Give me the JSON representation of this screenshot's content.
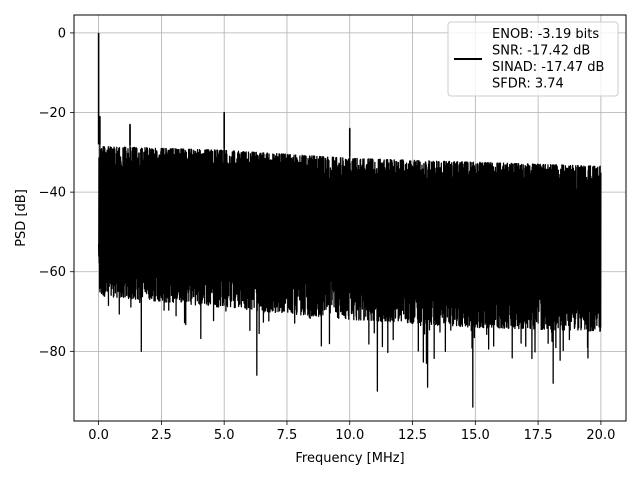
{
  "chart_data": {
    "type": "line",
    "xlabel": "Frequency [MHz]",
    "ylabel": "PSD [dB]",
    "xlim": [
      -0.98,
      21.0
    ],
    "ylim": [
      -97.5,
      4.5
    ],
    "xticks": [
      0.0,
      2.5,
      5.0,
      7.5,
      10.0,
      12.5,
      15.0,
      17.5,
      20.0
    ],
    "xtick_labels": [
      "0.0",
      "2.5",
      "5.0",
      "7.5",
      "10.0",
      "12.5",
      "15.0",
      "17.5",
      "20.0"
    ],
    "yticks": [
      0,
      -20,
      -40,
      -60,
      -80
    ],
    "ytick_labels": [
      "0",
      "−20",
      "−40",
      "−60",
      "−80"
    ],
    "grid": true,
    "legend_position": "top-right",
    "series": [
      {
        "legend_lines": [
          "ENOB: -3.19 bits",
          "SNR: -17.42 dB",
          "SINAD: -17.47 dB",
          "SFDR: 3.74"
        ],
        "color": "#000000",
        "noise_floor_top": [
          [
            0.0,
            -28
          ],
          [
            5.0,
            -29
          ],
          [
            10.0,
            -31
          ],
          [
            15.0,
            -32
          ],
          [
            20.0,
            -33
          ]
        ],
        "noise_floor_bottom": [
          [
            0.0,
            -66
          ],
          [
            5.0,
            -69
          ],
          [
            10.0,
            -72
          ],
          [
            15.0,
            -74
          ],
          [
            20.0,
            -75
          ]
        ],
        "peaks": [
          {
            "x": 0.0,
            "y": 0
          },
          {
            "x": 0.05,
            "y": -21
          },
          {
            "x": 1.25,
            "y": -23
          },
          {
            "x": 5.0,
            "y": -20
          },
          {
            "x": 10.0,
            "y": -24
          }
        ],
        "deep_minima": [
          {
            "x": 0.0,
            "y": -53
          },
          {
            "x": 1.7,
            "y": -80
          },
          {
            "x": 6.3,
            "y": -86
          },
          {
            "x": 11.1,
            "y": -90
          },
          {
            "x": 13.1,
            "y": -89
          },
          {
            "x": 14.9,
            "y": -94
          },
          {
            "x": 18.1,
            "y": -88
          }
        ]
      }
    ]
  }
}
